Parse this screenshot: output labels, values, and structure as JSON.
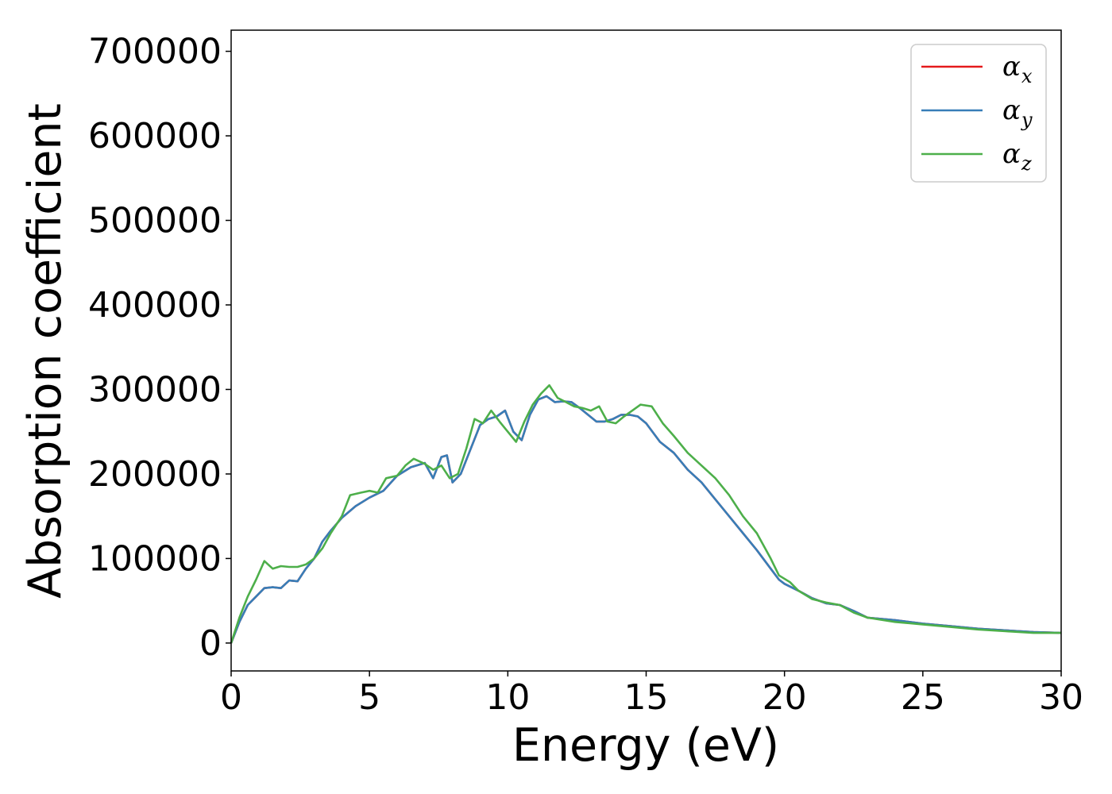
{
  "chart_data": {
    "type": "line",
    "title": "",
    "xlabel": "Energy (eV)",
    "ylabel": "Absorption coefficient",
    "xlim": [
      0,
      30
    ],
    "ylim": [
      -33000,
      725000
    ],
    "xticks": [
      0,
      5,
      10,
      15,
      20,
      25,
      30
    ],
    "xtick_labels": [
      "0",
      "5",
      "10",
      "15",
      "20",
      "25",
      "30"
    ],
    "yticks": [
      0,
      100000,
      200000,
      300000,
      400000,
      500000,
      600000,
      700000
    ],
    "ytick_labels": [
      "0",
      "100000",
      "200000",
      "300000",
      "400000",
      "500000",
      "600000",
      "700000"
    ],
    "grid": false,
    "legend_position": "top-right",
    "series": [
      {
        "name": "α_x",
        "legend_symbol": "α",
        "legend_sub": "x",
        "color": "#e41a1c",
        "x": [
          0,
          0.3,
          0.6,
          0.9,
          1.2,
          1.5,
          1.8,
          2.1,
          2.4,
          2.7,
          3.0,
          3.3,
          3.6,
          4.0,
          4.5,
          5.0,
          5.5,
          6.0,
          6.5,
          7.0,
          7.3,
          7.6,
          7.8,
          8.0,
          8.3,
          8.6,
          9.0,
          9.3,
          9.6,
          9.9,
          10.2,
          10.5,
          10.8,
          11.1,
          11.4,
          11.7,
          12.0,
          12.3,
          12.6,
          12.9,
          13.2,
          13.5,
          13.8,
          14.1,
          14.4,
          14.7,
          15.0,
          15.5,
          16.0,
          16.5,
          17.0,
          17.5,
          18.0,
          18.5,
          19.0,
          19.5,
          19.8,
          20.0,
          20.5,
          21.0,
          21.5,
          22.0,
          22.5,
          23.0,
          24.0,
          25.0,
          26.0,
          27.0,
          28.0,
          29.0,
          30.0
        ],
        "y": [
          0,
          25000,
          45000,
          55000,
          65000,
          66000,
          65000,
          74000,
          73000,
          88000,
          100000,
          120000,
          133000,
          148000,
          162000,
          172000,
          180000,
          198000,
          208000,
          213000,
          195000,
          220000,
          222000,
          190000,
          200000,
          225000,
          258000,
          265000,
          268000,
          275000,
          250000,
          240000,
          270000,
          288000,
          292000,
          285000,
          286000,
          285000,
          278000,
          270000,
          262000,
          262000,
          265000,
          270000,
          270000,
          268000,
          260000,
          238000,
          225000,
          205000,
          190000,
          170000,
          150000,
          130000,
          110000,
          88000,
          75000,
          70000,
          62000,
          53000,
          47000,
          45000,
          38000,
          30000,
          27000,
          23000,
          20000,
          17000,
          15000,
          13000,
          12000
        ]
      },
      {
        "name": "α_y",
        "legend_symbol": "α",
        "legend_sub": "y",
        "color": "#377eb8",
        "x": [
          0,
          0.3,
          0.6,
          0.9,
          1.2,
          1.5,
          1.8,
          2.1,
          2.4,
          2.7,
          3.0,
          3.3,
          3.6,
          4.0,
          4.5,
          5.0,
          5.5,
          6.0,
          6.5,
          7.0,
          7.3,
          7.6,
          7.8,
          8.0,
          8.3,
          8.6,
          9.0,
          9.3,
          9.6,
          9.9,
          10.2,
          10.5,
          10.8,
          11.1,
          11.4,
          11.7,
          12.0,
          12.3,
          12.6,
          12.9,
          13.2,
          13.5,
          13.8,
          14.1,
          14.4,
          14.7,
          15.0,
          15.5,
          16.0,
          16.5,
          17.0,
          17.5,
          18.0,
          18.5,
          19.0,
          19.5,
          19.8,
          20.0,
          20.5,
          21.0,
          21.5,
          22.0,
          22.5,
          23.0,
          24.0,
          25.0,
          26.0,
          27.0,
          28.0,
          29.0,
          30.0
        ],
        "y": [
          0,
          25000,
          45000,
          55000,
          65000,
          66000,
          65000,
          74000,
          73000,
          88000,
          100000,
          120000,
          133000,
          148000,
          162000,
          172000,
          180000,
          198000,
          208000,
          213000,
          195000,
          220000,
          222000,
          190000,
          200000,
          225000,
          258000,
          265000,
          268000,
          275000,
          250000,
          240000,
          270000,
          288000,
          292000,
          285000,
          286000,
          285000,
          278000,
          270000,
          262000,
          262000,
          265000,
          270000,
          270000,
          268000,
          260000,
          238000,
          225000,
          205000,
          190000,
          170000,
          150000,
          130000,
          110000,
          88000,
          75000,
          70000,
          62000,
          53000,
          47000,
          45000,
          38000,
          30000,
          27000,
          23000,
          20000,
          17000,
          15000,
          13000,
          12000
        ]
      },
      {
        "name": "α_z",
        "legend_symbol": "α",
        "legend_sub": "z",
        "color": "#4daf4a",
        "x": [
          0,
          0.3,
          0.6,
          0.9,
          1.2,
          1.5,
          1.8,
          2.1,
          2.4,
          2.7,
          3.0,
          3.3,
          3.6,
          4.0,
          4.3,
          4.7,
          5.0,
          5.3,
          5.6,
          6.0,
          6.3,
          6.6,
          7.0,
          7.3,
          7.6,
          7.9,
          8.2,
          8.5,
          8.8,
          9.1,
          9.4,
          9.7,
          10.0,
          10.3,
          10.6,
          10.9,
          11.2,
          11.5,
          11.8,
          12.1,
          12.4,
          12.7,
          13.0,
          13.3,
          13.6,
          13.9,
          14.2,
          14.5,
          14.8,
          15.2,
          15.6,
          16.0,
          16.5,
          17.0,
          17.5,
          18.0,
          18.5,
          19.0,
          19.5,
          19.8,
          20.2,
          20.5,
          21.0,
          21.5,
          22.0,
          22.5,
          23.0,
          24.0,
          25.0,
          26.0,
          27.0,
          28.0,
          29.0,
          30.0
        ],
        "y": [
          0,
          30000,
          55000,
          75000,
          97000,
          88000,
          91000,
          90000,
          90000,
          93000,
          100000,
          112000,
          130000,
          150000,
          175000,
          178000,
          180000,
          178000,
          195000,
          198000,
          210000,
          218000,
          212000,
          205000,
          210000,
          195000,
          200000,
          230000,
          265000,
          260000,
          275000,
          262000,
          250000,
          238000,
          262000,
          282000,
          295000,
          305000,
          290000,
          285000,
          280000,
          278000,
          275000,
          280000,
          262000,
          260000,
          268000,
          275000,
          282000,
          280000,
          260000,
          245000,
          225000,
          210000,
          195000,
          175000,
          150000,
          130000,
          100000,
          80000,
          72000,
          62000,
          52000,
          48000,
          45000,
          36000,
          30000,
          25000,
          22000,
          19000,
          16000,
          14000,
          12000,
          12000
        ]
      }
    ]
  }
}
